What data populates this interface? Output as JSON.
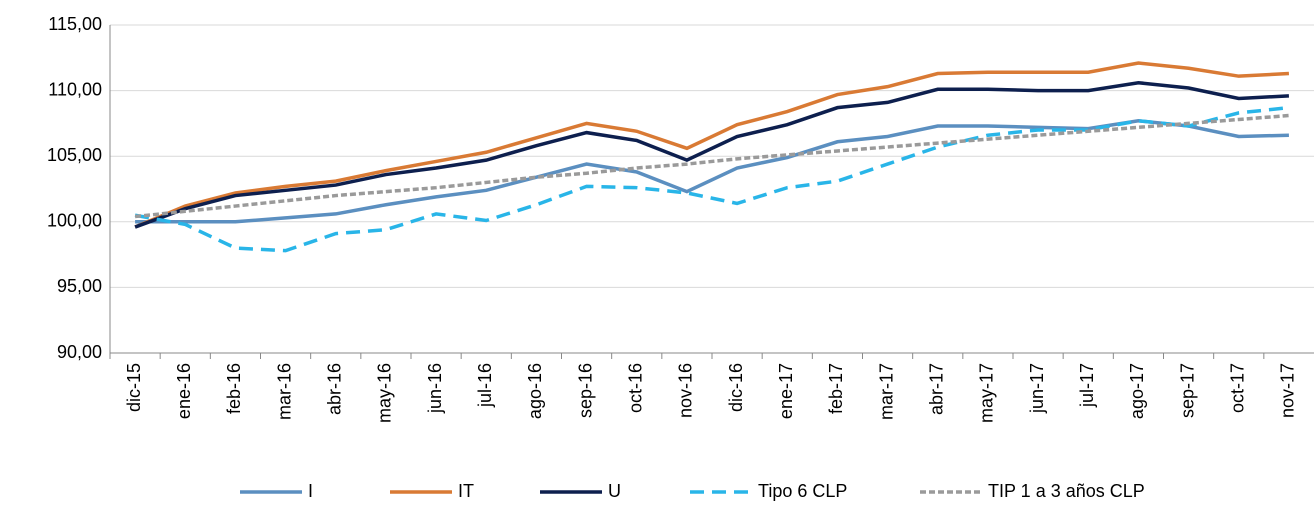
{
  "chart_data": {
    "type": "line",
    "categories": [
      "dic-15",
      "ene-16",
      "feb-16",
      "mar-16",
      "abr-16",
      "may-16",
      "jun-16",
      "jul-16",
      "ago-16",
      "sep-16",
      "oct-16",
      "nov-16",
      "dic-16",
      "ene-17",
      "feb-17",
      "mar-17",
      "abr-17",
      "may-17",
      "jun-17",
      "jul-17",
      "ago-17",
      "sep-17",
      "oct-17",
      "nov-17"
    ],
    "series": [
      {
        "name": "I",
        "color": "#5b8fc0",
        "dash": "solid",
        "values": [
          100.0,
          100.0,
          100.0,
          100.3,
          100.6,
          101.3,
          101.9,
          102.4,
          103.4,
          104.4,
          103.8,
          102.3,
          104.1,
          104.9,
          106.1,
          106.5,
          107.3,
          107.3,
          107.2,
          107.1,
          107.7,
          107.3,
          106.5,
          106.6
        ]
      },
      {
        "name": "IT",
        "color": "#d97a34",
        "dash": "solid",
        "values": [
          99.6,
          101.2,
          102.2,
          102.7,
          103.1,
          103.9,
          104.6,
          105.3,
          106.4,
          107.5,
          106.9,
          105.6,
          107.4,
          108.4,
          109.7,
          110.3,
          111.3,
          111.4,
          111.4,
          111.4,
          112.1,
          111.7,
          111.1,
          111.3
        ]
      },
      {
        "name": "U",
        "color": "#0d1f4e",
        "dash": "solid",
        "values": [
          99.6,
          101.0,
          102.0,
          102.4,
          102.8,
          103.6,
          104.1,
          104.7,
          105.8,
          106.8,
          106.2,
          104.7,
          106.5,
          107.4,
          108.7,
          109.1,
          110.1,
          110.1,
          110.0,
          110.0,
          110.6,
          110.2,
          109.4,
          109.6
        ]
      },
      {
        "name": "Tipo 6 CLP",
        "color": "#29b5e8",
        "dash": "dashed",
        "values": [
          100.5,
          99.8,
          98.0,
          97.8,
          99.1,
          99.4,
          100.6,
          100.1,
          101.3,
          102.7,
          102.6,
          102.2,
          101.4,
          102.6,
          103.1,
          104.4,
          105.7,
          106.6,
          107.0,
          107.0,
          107.7,
          107.3,
          108.3,
          108.7
        ]
      },
      {
        "name": "TIP 1 a 3 años CLP",
        "color": "#9a9a9a",
        "dash": "dotted",
        "values": [
          100.4,
          100.8,
          101.2,
          101.6,
          102.0,
          102.3,
          102.6,
          103.0,
          103.4,
          103.7,
          104.1,
          104.4,
          104.8,
          105.1,
          105.4,
          105.7,
          106.0,
          106.3,
          106.6,
          106.9,
          107.2,
          107.5,
          107.8,
          108.1
        ]
      }
    ],
    "ylim": [
      90,
      115
    ],
    "yticks": [
      {
        "value": 90,
        "label": "90,00"
      },
      {
        "value": 95,
        "label": "95,00"
      },
      {
        "value": 100,
        "label": "100,00"
      },
      {
        "value": 105,
        "label": "105,00"
      },
      {
        "value": 110,
        "label": "110,00"
      },
      {
        "value": 115,
        "label": "115,00"
      }
    ],
    "grid": true,
    "legend": "bottom"
  }
}
